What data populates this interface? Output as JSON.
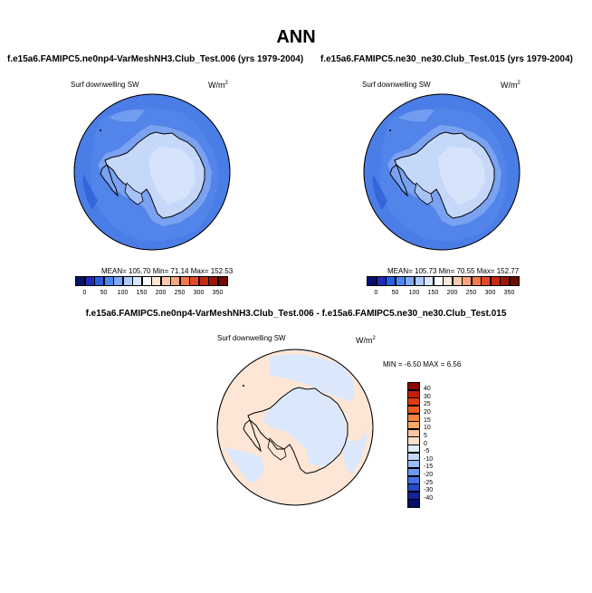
{
  "page": {
    "title": "ANN"
  },
  "panels": [
    {
      "case_label": "f.e15a6.FAMIPC5.ne0np4-VarMeshNH3.Club_Test.006 (yrs 1979-2004)",
      "variable": "Surf downwelling SW",
      "unit_base": "W/m",
      "unit_exp": "2",
      "stats_text": "MEAN= 105.70  Min=  71.14  Max= 152.53"
    },
    {
      "case_label": "f.e15a6.FAMIPC5.ne30_ne30.Club_Test.015 (yrs 1979-2004)",
      "variable": "Surf downwelling SW",
      "unit_base": "W/m",
      "unit_exp": "2",
      "stats_text": "MEAN= 105.73  Min=  70.55  Max= 152.77"
    },
    {
      "case_label": "f.e15a6.FAMIPC5.ne0np4-VarMeshNH3.Club_Test.006 - f.e15a6.FAMIPC5.ne30_ne30.Club_Test.015",
      "variable": "Surf downwelling SW",
      "unit_base": "W/m",
      "unit_exp": "2",
      "stats_text": "MIN =  -6.50 MAX =   6.56"
    }
  ],
  "chart_data": [
    {
      "type": "heatmap",
      "projection": "polar-stereographic",
      "hemisphere": "south",
      "colorbar_orientation": "horizontal",
      "levels": [
        0,
        50,
        100,
        150,
        200,
        250,
        300,
        350
      ],
      "colorbar_labels": [
        "0",
        "50",
        "100",
        "150",
        "200",
        "250",
        "300",
        "350"
      ],
      "colors": [
        "#08106e",
        "#1c2cb8",
        "#2a5ee0",
        "#4e86f0",
        "#7eaaf6",
        "#aec9fa",
        "#d8e6fd",
        "#ffffff",
        "#fde6d6",
        "#fbc9ae",
        "#f8a47c",
        "#f3794d",
        "#e34b26",
        "#c62a10",
        "#9c1505",
        "#6e0b02"
      ],
      "stats": {
        "mean": 105.7,
        "min": 71.14,
        "max": 152.53
      }
    },
    {
      "type": "heatmap",
      "projection": "polar-stereographic",
      "hemisphere": "south",
      "colorbar_orientation": "horizontal",
      "levels": [
        0,
        50,
        100,
        150,
        200,
        250,
        300,
        350
      ],
      "colorbar_labels": [
        "0",
        "50",
        "100",
        "150",
        "200",
        "250",
        "300",
        "350"
      ],
      "colors": [
        "#08106e",
        "#1c2cb8",
        "#2a5ee0",
        "#4e86f0",
        "#7eaaf6",
        "#aec9fa",
        "#d8e6fd",
        "#ffffff",
        "#fde6d6",
        "#fbc9ae",
        "#f8a47c",
        "#f3794d",
        "#e34b26",
        "#c62a10",
        "#9c1505",
        "#6e0b02"
      ],
      "stats": {
        "mean": 105.73,
        "min": 70.55,
        "max": 152.77
      }
    },
    {
      "type": "heatmap",
      "projection": "polar-stereographic",
      "hemisphere": "south",
      "colorbar_orientation": "vertical",
      "levels": [
        40,
        30,
        25,
        20,
        15,
        10,
        5,
        0,
        -5,
        -10,
        -15,
        -20,
        -25,
        -30,
        -40
      ],
      "colorbar_labels": [
        "40",
        "30",
        "25",
        "20",
        "15",
        "10",
        "5",
        "0",
        "-5",
        "-10",
        "-15",
        "-20",
        "-25",
        "-30",
        "-40"
      ],
      "colors": [
        "#8b0a02",
        "#c0200a",
        "#e03a14",
        "#f05a24",
        "#f7843e",
        "#f9a866",
        "#fbc6a0",
        "#fde0cc",
        "#e2ecfc",
        "#c2d8fa",
        "#98baf5",
        "#6e98ee",
        "#4672e3",
        "#2848c4",
        "#14249a",
        "#060e6a"
      ],
      "stats": {
        "min": -6.5,
        "max": 6.56
      }
    }
  ],
  "colors": {
    "ocean_field": "#4a7de6",
    "ice_interior": "#c6d8f9",
    "coast_band": "#7aa2f0",
    "diff_positive": "#fde6d6",
    "diff_negative": "#dbe8fc"
  }
}
